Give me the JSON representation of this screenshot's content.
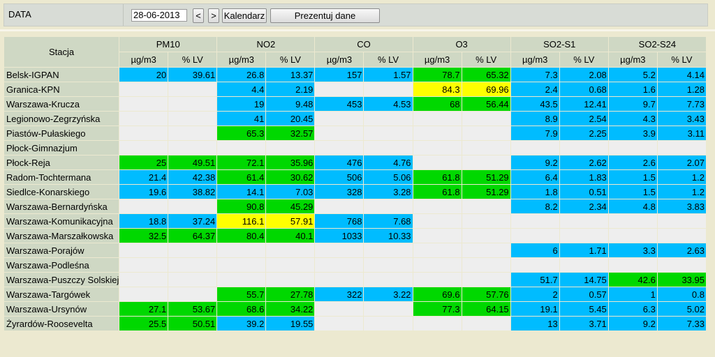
{
  "toolbar": {
    "label": "DATA",
    "date_value": "28-06-2013",
    "prev_label": "<",
    "next_label": ">",
    "calendar_label": "Kalendarz",
    "present_label": "Prezentuj dane"
  },
  "colors": {
    "blue": "#00bcff",
    "green": "#00d800",
    "yellow": "#ffff00",
    "empty": "#eeeeee",
    "header": "#cfd8c4"
  },
  "table": {
    "station_header": "Stacja",
    "groups": [
      {
        "name": "PM10",
        "units": [
          "µg/m3",
          "% LV"
        ]
      },
      {
        "name": "NO2",
        "units": [
          "µg/m3",
          "% LV"
        ]
      },
      {
        "name": "CO",
        "units": [
          "µg/m3",
          "% LV"
        ]
      },
      {
        "name": "O3",
        "units": [
          "µg/m3",
          "% LV"
        ]
      },
      {
        "name": "SO2-S1",
        "units": [
          "µg/m3",
          "% LV"
        ]
      },
      {
        "name": "SO2-S24",
        "units": [
          "µg/m3",
          "% LV"
        ]
      }
    ],
    "rows": [
      {
        "station": "Belsk-IGPAN",
        "cells": [
          [
            "20",
            "b"
          ],
          [
            "39.61",
            "b"
          ],
          [
            "26.8",
            "b"
          ],
          [
            "13.37",
            "b"
          ],
          [
            "157",
            "b"
          ],
          [
            "1.57",
            "b"
          ],
          [
            "78.7",
            "g"
          ],
          [
            "65.32",
            "g"
          ],
          [
            "7.3",
            "b"
          ],
          [
            "2.08",
            "b"
          ],
          [
            "5.2",
            "b"
          ],
          [
            "4.14",
            "b"
          ]
        ]
      },
      {
        "station": "Granica-KPN",
        "cells": [
          [
            "",
            "e"
          ],
          [
            "",
            "e"
          ],
          [
            "4.4",
            "b"
          ],
          [
            "2.19",
            "b"
          ],
          [
            "",
            "e"
          ],
          [
            "",
            "e"
          ],
          [
            "84.3",
            "y"
          ],
          [
            "69.96",
            "y"
          ],
          [
            "2.4",
            "b"
          ],
          [
            "0.68",
            "b"
          ],
          [
            "1.6",
            "b"
          ],
          [
            "1.28",
            "b"
          ]
        ]
      },
      {
        "station": "Warszawa-Krucza",
        "cells": [
          [
            "",
            "e"
          ],
          [
            "",
            "e"
          ],
          [
            "19",
            "b"
          ],
          [
            "9.48",
            "b"
          ],
          [
            "453",
            "b"
          ],
          [
            "4.53",
            "b"
          ],
          [
            "68",
            "g"
          ],
          [
            "56.44",
            "g"
          ],
          [
            "43.5",
            "b"
          ],
          [
            "12.41",
            "b"
          ],
          [
            "9.7",
            "b"
          ],
          [
            "7.73",
            "b"
          ]
        ]
      },
      {
        "station": "Legionowo-Zegrzyńska",
        "cells": [
          [
            "",
            "e"
          ],
          [
            "",
            "e"
          ],
          [
            "41",
            "b"
          ],
          [
            "20.45",
            "b"
          ],
          [
            "",
            "e"
          ],
          [
            "",
            "e"
          ],
          [
            "",
            "e"
          ],
          [
            "",
            "e"
          ],
          [
            "8.9",
            "b"
          ],
          [
            "2.54",
            "b"
          ],
          [
            "4.3",
            "b"
          ],
          [
            "3.43",
            "b"
          ]
        ]
      },
      {
        "station": "Piastów-Pułaskiego",
        "cells": [
          [
            "",
            "e"
          ],
          [
            "",
            "e"
          ],
          [
            "65.3",
            "g"
          ],
          [
            "32.57",
            "g"
          ],
          [
            "",
            "e"
          ],
          [
            "",
            "e"
          ],
          [
            "",
            "e"
          ],
          [
            "",
            "e"
          ],
          [
            "7.9",
            "b"
          ],
          [
            "2.25",
            "b"
          ],
          [
            "3.9",
            "b"
          ],
          [
            "3.11",
            "b"
          ]
        ]
      },
      {
        "station": "Płock-Gimnazjum",
        "cells": [
          [
            "",
            "e"
          ],
          [
            "",
            "e"
          ],
          [
            "",
            "e"
          ],
          [
            "",
            "e"
          ],
          [
            "",
            "e"
          ],
          [
            "",
            "e"
          ],
          [
            "",
            "e"
          ],
          [
            "",
            "e"
          ],
          [
            "",
            "e"
          ],
          [
            "",
            "e"
          ],
          [
            "",
            "e"
          ],
          [
            "",
            "e"
          ]
        ]
      },
      {
        "station": "Płock-Reja",
        "cells": [
          [
            "25",
            "g"
          ],
          [
            "49.51",
            "g"
          ],
          [
            "72.1",
            "g"
          ],
          [
            "35.96",
            "g"
          ],
          [
            "476",
            "b"
          ],
          [
            "4.76",
            "b"
          ],
          [
            "",
            "e"
          ],
          [
            "",
            "e"
          ],
          [
            "9.2",
            "b"
          ],
          [
            "2.62",
            "b"
          ],
          [
            "2.6",
            "b"
          ],
          [
            "2.07",
            "b"
          ]
        ]
      },
      {
        "station": "Radom-Tochtermana",
        "cells": [
          [
            "21.4",
            "b"
          ],
          [
            "42.38",
            "b"
          ],
          [
            "61.4",
            "g"
          ],
          [
            "30.62",
            "g"
          ],
          [
            "506",
            "b"
          ],
          [
            "5.06",
            "b"
          ],
          [
            "61.8",
            "g"
          ],
          [
            "51.29",
            "g"
          ],
          [
            "6.4",
            "b"
          ],
          [
            "1.83",
            "b"
          ],
          [
            "1.5",
            "b"
          ],
          [
            "1.2",
            "b"
          ]
        ]
      },
      {
        "station": "Siedlce-Konarskiego",
        "cells": [
          [
            "19.6",
            "b"
          ],
          [
            "38.82",
            "b"
          ],
          [
            "14.1",
            "b"
          ],
          [
            "7.03",
            "b"
          ],
          [
            "328",
            "b"
          ],
          [
            "3.28",
            "b"
          ],
          [
            "61.8",
            "g"
          ],
          [
            "51.29",
            "g"
          ],
          [
            "1.8",
            "b"
          ],
          [
            "0.51",
            "b"
          ],
          [
            "1.5",
            "b"
          ],
          [
            "1.2",
            "b"
          ]
        ]
      },
      {
        "station": "Warszawa-Bernardyńska",
        "cells": [
          [
            "",
            "e"
          ],
          [
            "",
            "e"
          ],
          [
            "90.8",
            "g"
          ],
          [
            "45.29",
            "g"
          ],
          [
            "",
            "e"
          ],
          [
            "",
            "e"
          ],
          [
            "",
            "e"
          ],
          [
            "",
            "e"
          ],
          [
            "8.2",
            "b"
          ],
          [
            "2.34",
            "b"
          ],
          [
            "4.8",
            "b"
          ],
          [
            "3.83",
            "b"
          ]
        ]
      },
      {
        "station": "Warszawa-Komunikacyjna",
        "cells": [
          [
            "18.8",
            "b"
          ],
          [
            "37.24",
            "b"
          ],
          [
            "116.1",
            "y"
          ],
          [
            "57.91",
            "y"
          ],
          [
            "768",
            "b"
          ],
          [
            "7.68",
            "b"
          ],
          [
            "",
            "e"
          ],
          [
            "",
            "e"
          ],
          [
            "",
            "e"
          ],
          [
            "",
            "e"
          ],
          [
            "",
            "e"
          ],
          [
            "",
            "e"
          ]
        ]
      },
      {
        "station": "Warszawa-Marszałkowska",
        "cells": [
          [
            "32.5",
            "g"
          ],
          [
            "64.37",
            "g"
          ],
          [
            "80.4",
            "g"
          ],
          [
            "40.1",
            "g"
          ],
          [
            "1033",
            "b"
          ],
          [
            "10.33",
            "b"
          ],
          [
            "",
            "e"
          ],
          [
            "",
            "e"
          ],
          [
            "",
            "e"
          ],
          [
            "",
            "e"
          ],
          [
            "",
            "e"
          ],
          [
            "",
            "e"
          ]
        ]
      },
      {
        "station": "Warszawa-Porajów",
        "cells": [
          [
            "",
            "e"
          ],
          [
            "",
            "e"
          ],
          [
            "",
            "e"
          ],
          [
            "",
            "e"
          ],
          [
            "",
            "e"
          ],
          [
            "",
            "e"
          ],
          [
            "",
            "e"
          ],
          [
            "",
            "e"
          ],
          [
            "6",
            "b"
          ],
          [
            "1.71",
            "b"
          ],
          [
            "3.3",
            "b"
          ],
          [
            "2.63",
            "b"
          ]
        ]
      },
      {
        "station": "Warszawa-Podleśna",
        "cells": [
          [
            "",
            "e"
          ],
          [
            "",
            "e"
          ],
          [
            "",
            "e"
          ],
          [
            "",
            "e"
          ],
          [
            "",
            "e"
          ],
          [
            "",
            "e"
          ],
          [
            "",
            "e"
          ],
          [
            "",
            "e"
          ],
          [
            "",
            "e"
          ],
          [
            "",
            "e"
          ],
          [
            "",
            "e"
          ],
          [
            "",
            "e"
          ]
        ]
      },
      {
        "station": "Warszawa-Puszczy Solskiej",
        "cells": [
          [
            "",
            "e"
          ],
          [
            "",
            "e"
          ],
          [
            "",
            "e"
          ],
          [
            "",
            "e"
          ],
          [
            "",
            "e"
          ],
          [
            "",
            "e"
          ],
          [
            "",
            "e"
          ],
          [
            "",
            "e"
          ],
          [
            "51.7",
            "b"
          ],
          [
            "14.75",
            "b"
          ],
          [
            "42.6",
            "g"
          ],
          [
            "33.95",
            "g"
          ]
        ]
      },
      {
        "station": "Warszawa-Targówek",
        "cells": [
          [
            "",
            "e"
          ],
          [
            "",
            "e"
          ],
          [
            "55.7",
            "g"
          ],
          [
            "27.78",
            "g"
          ],
          [
            "322",
            "b"
          ],
          [
            "3.22",
            "b"
          ],
          [
            "69.6",
            "g"
          ],
          [
            "57.76",
            "g"
          ],
          [
            "2",
            "b"
          ],
          [
            "0.57",
            "b"
          ],
          [
            "1",
            "b"
          ],
          [
            "0.8",
            "b"
          ]
        ]
      },
      {
        "station": "Warszawa-Ursynów",
        "cells": [
          [
            "27.1",
            "g"
          ],
          [
            "53.67",
            "g"
          ],
          [
            "68.6",
            "g"
          ],
          [
            "34.22",
            "g"
          ],
          [
            "",
            "e"
          ],
          [
            "",
            "e"
          ],
          [
            "77.3",
            "g"
          ],
          [
            "64.15",
            "g"
          ],
          [
            "19.1",
            "b"
          ],
          [
            "5.45",
            "b"
          ],
          [
            "6.3",
            "b"
          ],
          [
            "5.02",
            "b"
          ]
        ]
      },
      {
        "station": "Żyrardów-Roosevelta",
        "cells": [
          [
            "25.5",
            "g"
          ],
          [
            "50.51",
            "g"
          ],
          [
            "39.2",
            "b"
          ],
          [
            "19.55",
            "b"
          ],
          [
            "",
            "e"
          ],
          [
            "",
            "e"
          ],
          [
            "",
            "e"
          ],
          [
            "",
            "e"
          ],
          [
            "13",
            "b"
          ],
          [
            "3.71",
            "b"
          ],
          [
            "9.2",
            "b"
          ],
          [
            "7.33",
            "b"
          ]
        ]
      }
    ]
  }
}
